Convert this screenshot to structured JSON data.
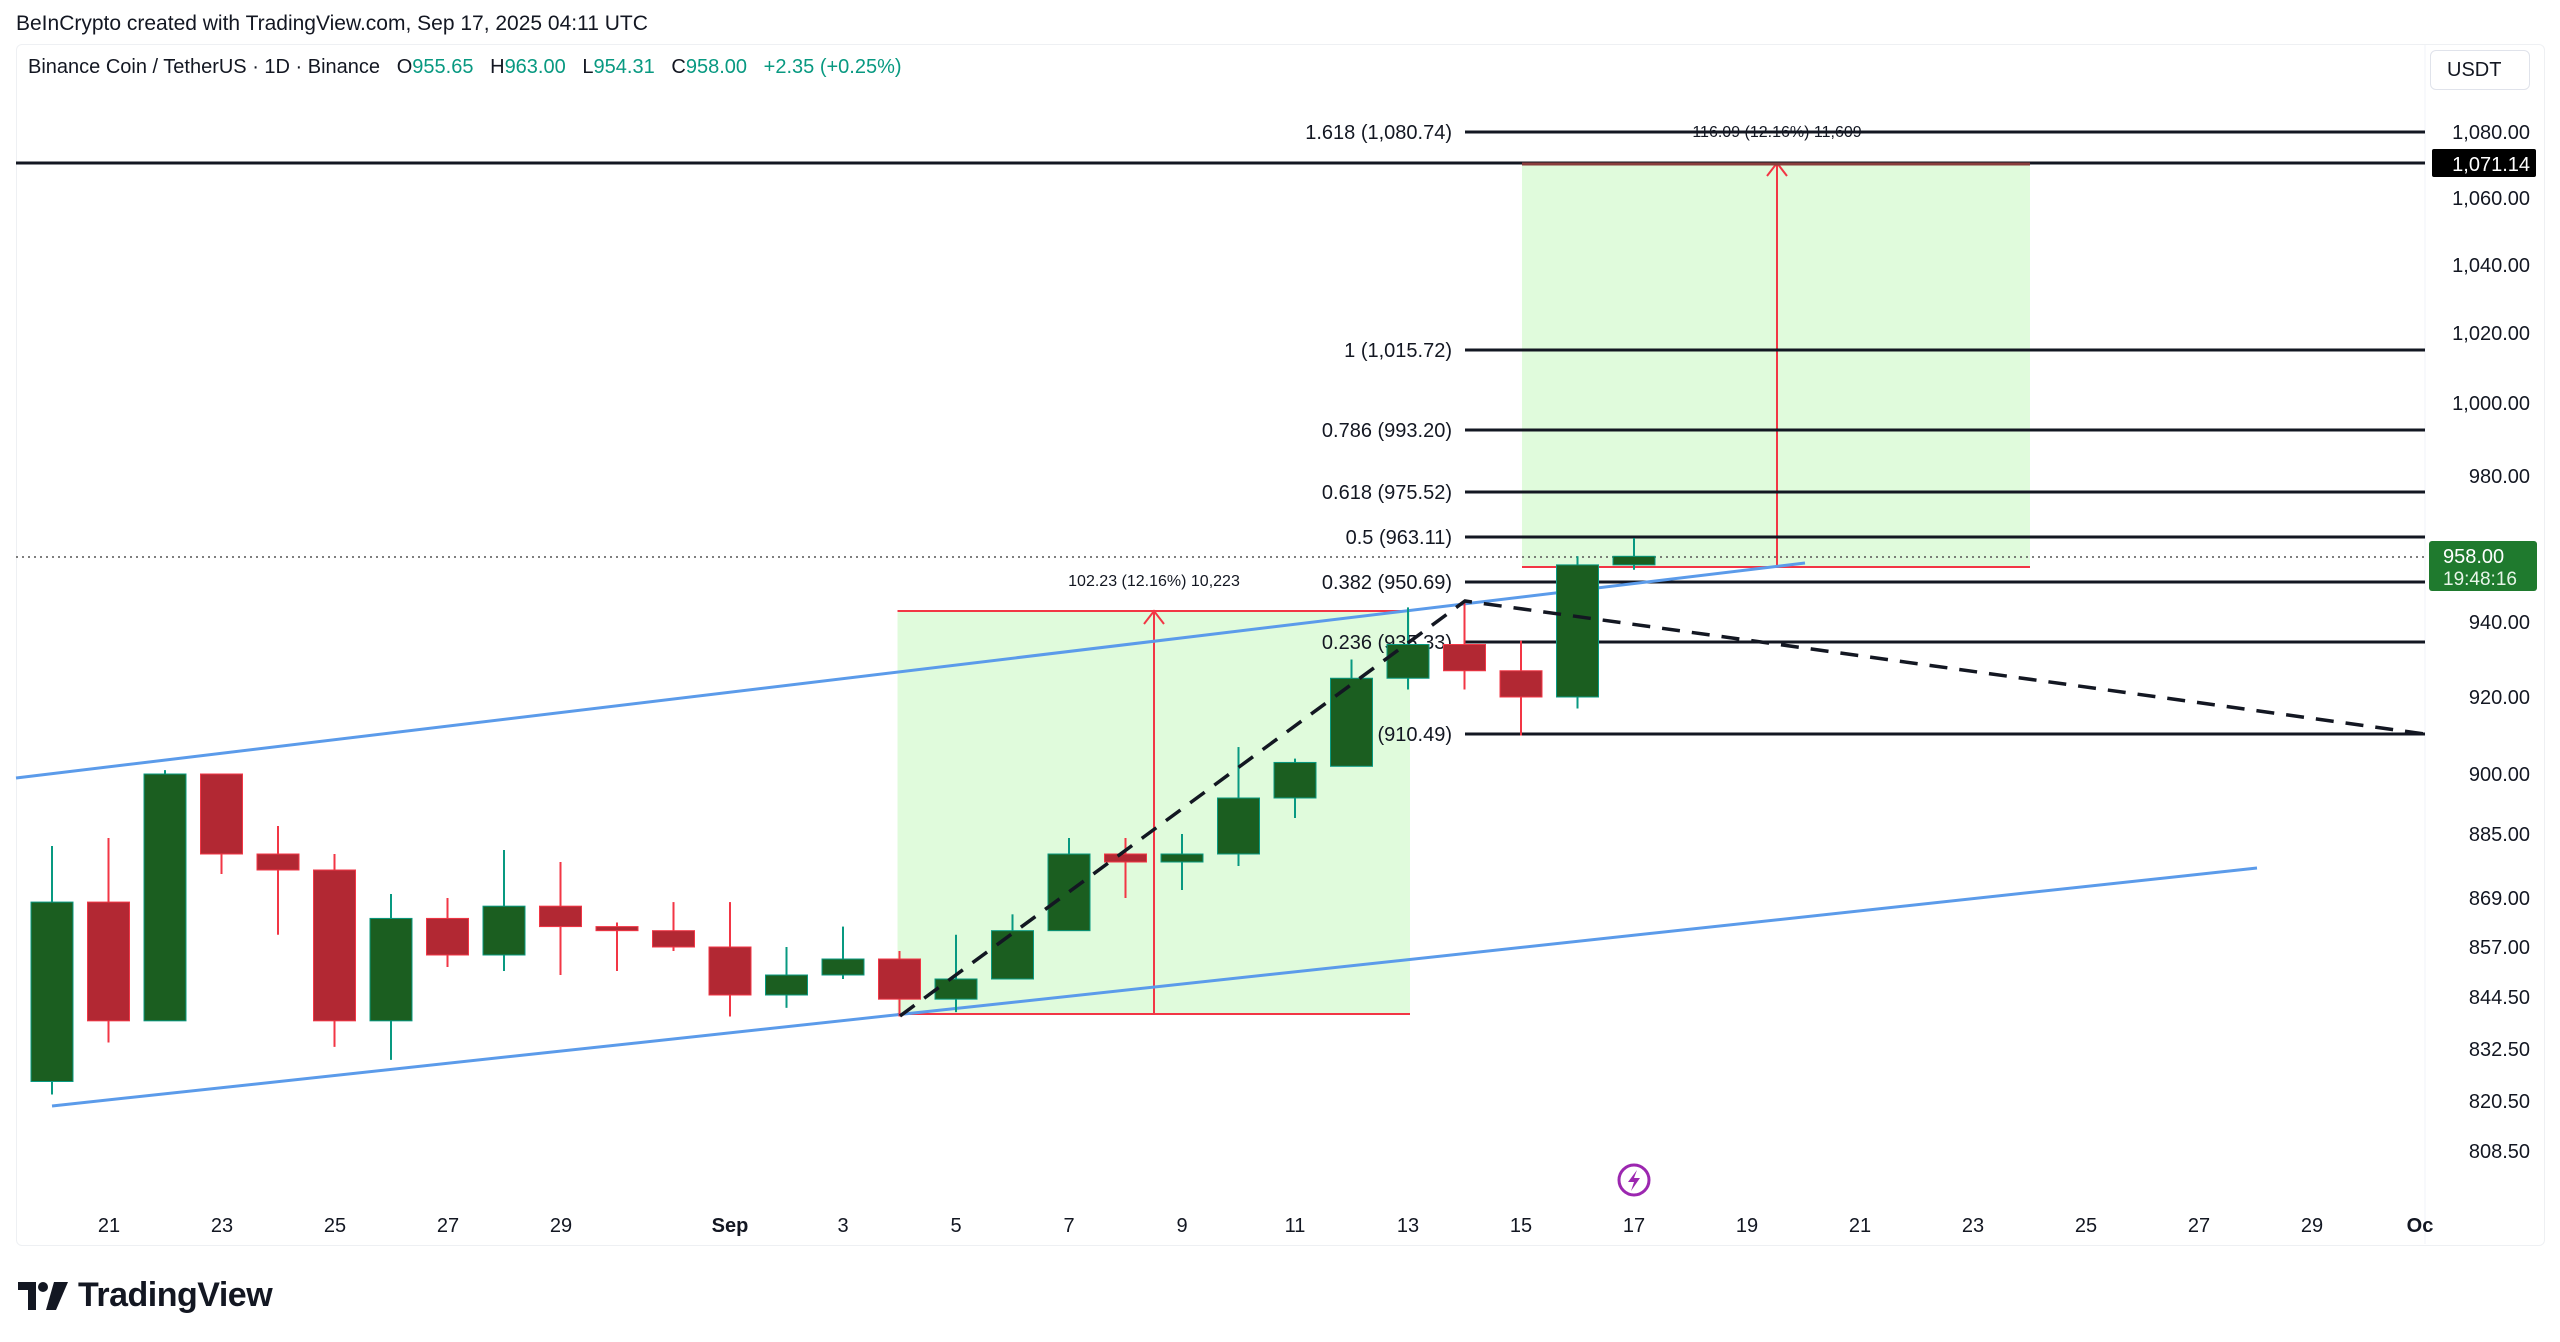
{
  "caption": "BeInCrypto created with TradingView.com, Sep 17, 2025 04:11 UTC",
  "legend": {
    "symbol": "Binance Coin / TetherUS · 1D · Binance",
    "open_label": "O",
    "open": "955.65",
    "high_label": "H",
    "high": "963.00",
    "low_label": "L",
    "low": "954.31",
    "close_label": "C",
    "close": "958.00",
    "change": "+2.35 (+0.25%)"
  },
  "currency": "USDT",
  "price_axis": {
    "ticks": [
      "1,080.00",
      "1,060.00",
      "1,040.00",
      "1,020.00",
      "1,000.00",
      "980.00",
      "940.00",
      "920.00",
      "900.00",
      "885.00",
      "869.00",
      "857.00",
      "844.50",
      "832.50",
      "820.50",
      "808.50"
    ],
    "marker_target": "1,071.14",
    "marker_current_price": "958.00",
    "marker_countdown": "19:48:16"
  },
  "time_axis": {
    "ticks": [
      "21",
      "23",
      "25",
      "27",
      "29",
      "Sep",
      "3",
      "5",
      "7",
      "9",
      "11",
      "13",
      "15",
      "17",
      "19",
      "21",
      "23",
      "25",
      "27",
      "29",
      "Oc"
    ]
  },
  "fib_levels": [
    {
      "label": "1.618 (1,080.74)"
    },
    {
      "label": "1 (1,015.72)"
    },
    {
      "label": "0.786 (993.20)"
    },
    {
      "label": "0.618 (975.52)"
    },
    {
      "label": "0.5 (963.11)"
    },
    {
      "label": "0.382 (950.69)"
    },
    {
      "label": "0.236 (935.33)"
    },
    {
      "label": "0 (910.49)"
    }
  ],
  "measurements": {
    "first": "102.23 (12.16%) 10,223",
    "second": "116.09 (12.16%) 11,609"
  },
  "branding": {
    "logo_text": "TradingView"
  },
  "colors": {
    "up": "#1b5e20",
    "down": "#b22833",
    "channel": "#5b9bea",
    "zone": "#e0fbdc",
    "measure": "#f23645"
  },
  "chart_data": {
    "type": "candlestick",
    "title": "Binance Coin / TetherUS · 1D · Binance",
    "xlabel": "",
    "ylabel": "USDT",
    "ylim": [
      800,
      1090
    ],
    "x": [
      "Aug 20",
      "Aug 21",
      "Aug 22",
      "Aug 23",
      "Aug 24",
      "Aug 25",
      "Aug 26",
      "Aug 27",
      "Aug 28",
      "Aug 29",
      "Aug 30",
      "Aug 31",
      "Sep 1",
      "Sep 2",
      "Sep 3",
      "Sep 4",
      "Sep 5",
      "Sep 6",
      "Sep 7",
      "Sep 8",
      "Sep 9",
      "Sep 10",
      "Sep 11",
      "Sep 12",
      "Sep 13",
      "Sep 14",
      "Sep 15",
      "Sep 16",
      "Sep 17"
    ],
    "ohlc": [
      [
        825,
        868,
        822,
        882
      ],
      [
        868,
        839,
        834,
        884
      ],
      [
        839,
        900,
        839,
        901
      ],
      [
        900,
        880,
        875,
        900
      ],
      [
        880,
        876,
        860,
        887
      ],
      [
        876,
        839,
        833,
        880
      ],
      [
        839,
        864,
        830,
        870
      ],
      [
        864,
        855,
        852,
        869
      ],
      [
        855,
        867,
        851,
        881
      ],
      [
        867,
        862,
        850,
        878
      ],
      [
        862,
        861,
        851,
        863
      ],
      [
        861,
        857,
        856,
        868
      ],
      [
        857,
        845,
        840,
        868
      ],
      [
        845,
        850,
        842,
        857
      ],
      [
        850,
        854,
        849,
        862
      ],
      [
        854,
        844,
        840,
        856
      ],
      [
        844,
        849,
        841,
        860
      ],
      [
        849,
        861,
        849,
        865
      ],
      [
        861,
        880,
        861,
        884
      ],
      [
        880,
        878,
        869,
        884
      ],
      [
        878,
        880,
        871,
        885
      ],
      [
        880,
        894,
        877,
        907
      ],
      [
        894,
        903,
        889,
        904
      ],
      [
        902,
        925,
        902,
        930
      ],
      [
        925,
        934,
        922,
        944
      ],
      [
        934,
        927,
        922,
        946
      ],
      [
        927,
        920,
        910,
        935
      ],
      [
        920,
        955.65,
        917,
        958
      ],
      [
        955.65,
        958.0,
        954.31,
        963.0
      ]
    ],
    "overlays": {
      "fib_extension": [
        1080.74,
        1015.72,
        993.2,
        975.52,
        963.11,
        950.69,
        935.33,
        910.49
      ],
      "target_line": 1071.14,
      "current_price": 958.0,
      "ascending_channel": {
        "upper": [
          [
            "Aug 19",
            897
          ],
          [
            "Sep 16",
            956
          ]
        ],
        "lower": [
          [
            "Aug 20",
            822
          ],
          [
            "Sep 28",
            877
          ]
        ]
      },
      "measure_boxes": [
        {
          "from": "Sep 4",
          "to": "Sep 13",
          "low": 840,
          "high": 942.23,
          "label": "102.23 (12.16%) 10,223"
        },
        {
          "from": "Sep 15",
          "to": "Sep 24",
          "low": 955.05,
          "high": 1071.14,
          "label": "116.09 (12.16%) 11,609"
        }
      ],
      "dashed_projection": [
        [
          "Sep 4",
          840
        ],
        [
          "Sep 14",
          946
        ],
        [
          "Oct 1",
          910.49
        ]
      ]
    },
    "legend_position": "top-left"
  }
}
